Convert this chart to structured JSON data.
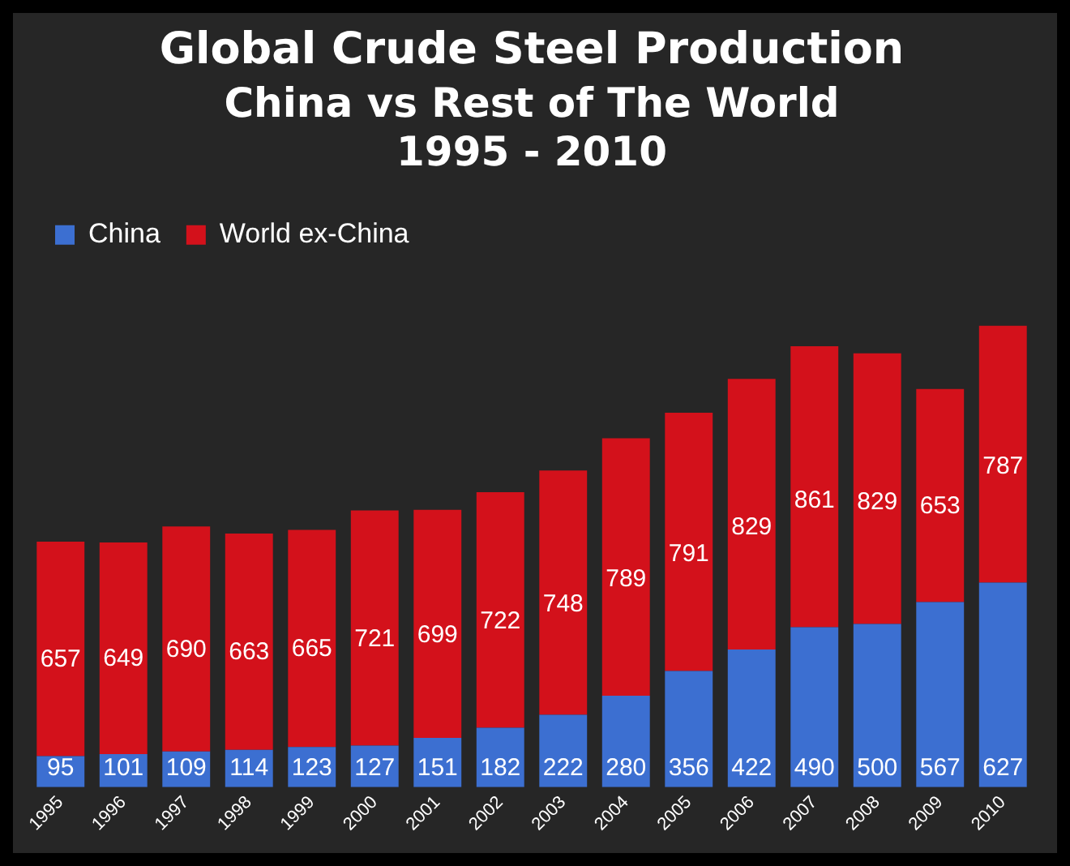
{
  "chart_data": {
    "type": "bar",
    "title": "Global Crude Steel Production",
    "subtitle": "China vs Rest of The World\n1995 - 2010",
    "categories": [
      "1995",
      "1996",
      "1997",
      "1998",
      "1999",
      "2000",
      "2001",
      "2002",
      "2003",
      "2004",
      "2005",
      "2006",
      "2007",
      "2008",
      "2009",
      "2010"
    ],
    "stacked": true,
    "series": [
      {
        "name": "China",
        "color": "#3c6fd1",
        "values": [
          95,
          101,
          109,
          114,
          123,
          127,
          151,
          182,
          222,
          280,
          356,
          422,
          490,
          500,
          567,
          627
        ]
      },
      {
        "name": "World ex-China",
        "color": "#d3111b",
        "values": [
          657,
          649,
          690,
          663,
          665,
          721,
          699,
          722,
          748,
          789,
          791,
          829,
          861,
          829,
          653,
          787
        ]
      }
    ],
    "data_labels": true,
    "legend": "top left"
  }
}
